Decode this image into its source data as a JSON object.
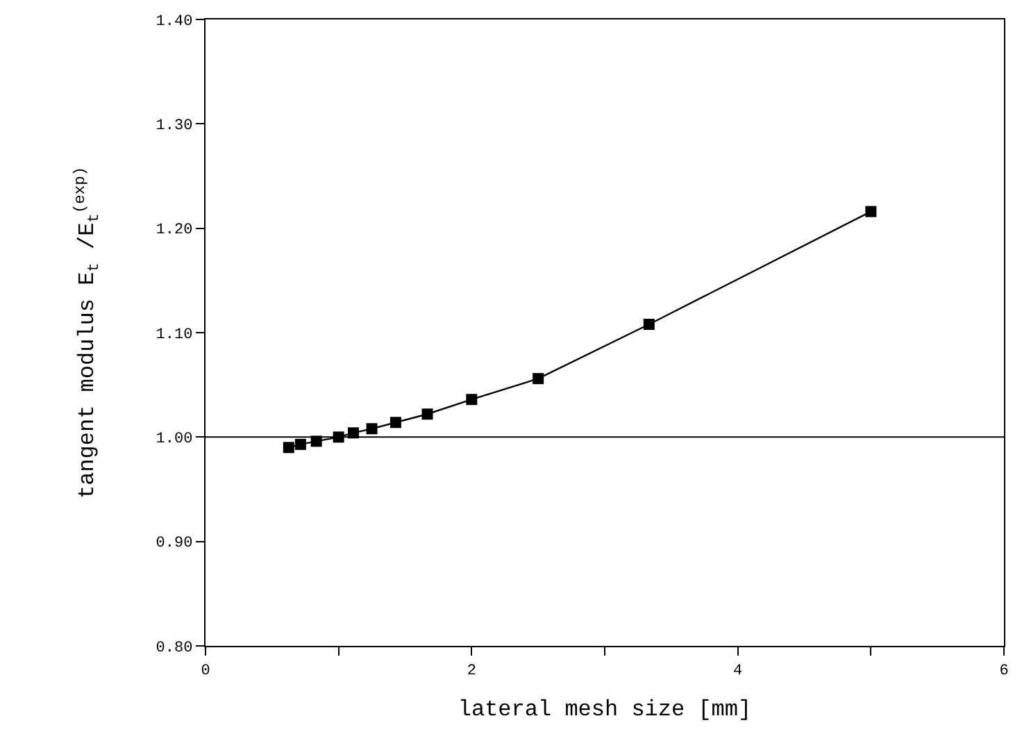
{
  "chart_data": {
    "type": "line",
    "xlabel": "lateral mesh size [mm]",
    "ylabel": "tangent modulus E$_{t}$ /E$_{t}$$^{(exp)}$",
    "x": [
      0.625,
      0.714,
      0.833,
      1.0,
      1.111,
      1.25,
      1.429,
      1.667,
      2.0,
      2.5,
      3.333,
      5.0
    ],
    "series": [
      {
        "color": "#000000",
        "values": [
          0.99,
          0.993,
          0.996,
          1.0,
          1.004,
          1.008,
          1.014,
          1.022,
          1.036,
          1.056,
          1.108,
          1.216
        ]
      }
    ],
    "marker": "square",
    "line_style": "solid",
    "xlim": [
      0,
      6
    ],
    "ylim": [
      0.8,
      1.4
    ],
    "xticks": [
      0,
      {
        "value": 1,
        "label": null
      },
      2,
      {
        "value": 3,
        "label": null
      },
      4,
      {
        "value": 5,
        "label": null
      },
      6
    ],
    "yticks": [
      {
        "value": 0.8,
        "label": "0.80"
      },
      {
        "value": 0.9,
        "label": "0.90"
      },
      {
        "value": 1.0,
        "label": "1.00"
      },
      {
        "value": 1.1,
        "label": "1.10"
      },
      {
        "value": 1.2,
        "label": "1.20"
      },
      {
        "value": 1.3,
        "label": "1.30"
      },
      {
        "value": 1.4,
        "label": "1.40"
      }
    ],
    "ref_lines": [
      {
        "axis": "y",
        "value": 1.0,
        "color": "#000000",
        "line_style": "solid"
      }
    ],
    "grid": false,
    "legend": false
  }
}
